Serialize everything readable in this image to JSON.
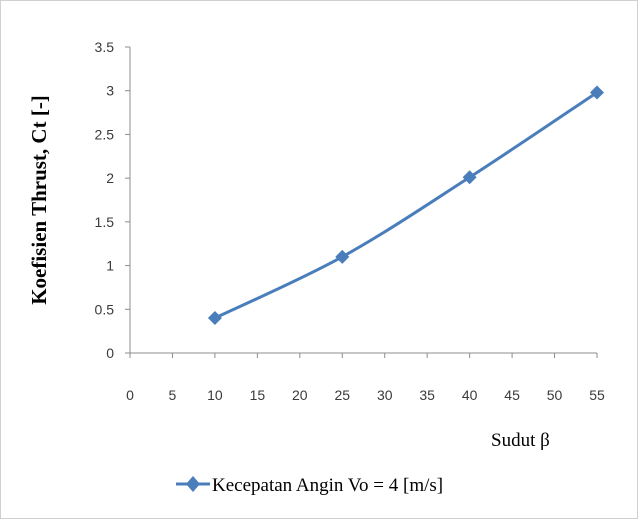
{
  "chart_data": {
    "type": "line",
    "title": "",
    "xlabel": "Sudut β",
    "ylabel": "Koefisien Thrust, Ct [-]",
    "x_ticks": [
      "0",
      "5",
      "10",
      "15",
      "20",
      "25",
      "30",
      "35",
      "40",
      "45",
      "50",
      "55"
    ],
    "y_ticks": [
      "0",
      "0.5",
      "1",
      "1.5",
      "2",
      "2.5",
      "3",
      "3.5"
    ],
    "xlim": [
      0,
      55
    ],
    "ylim": [
      0,
      3.5
    ],
    "grid": false,
    "legend_position": "bottom",
    "series": [
      {
        "name": "Kecepatan Angin Vo = 4 [m/s]",
        "color": "#4a7ebb",
        "marker": "diamond",
        "x": [
          10,
          25,
          40,
          55
        ],
        "y": [
          0.4,
          1.1,
          2.01,
          2.98
        ]
      }
    ]
  }
}
